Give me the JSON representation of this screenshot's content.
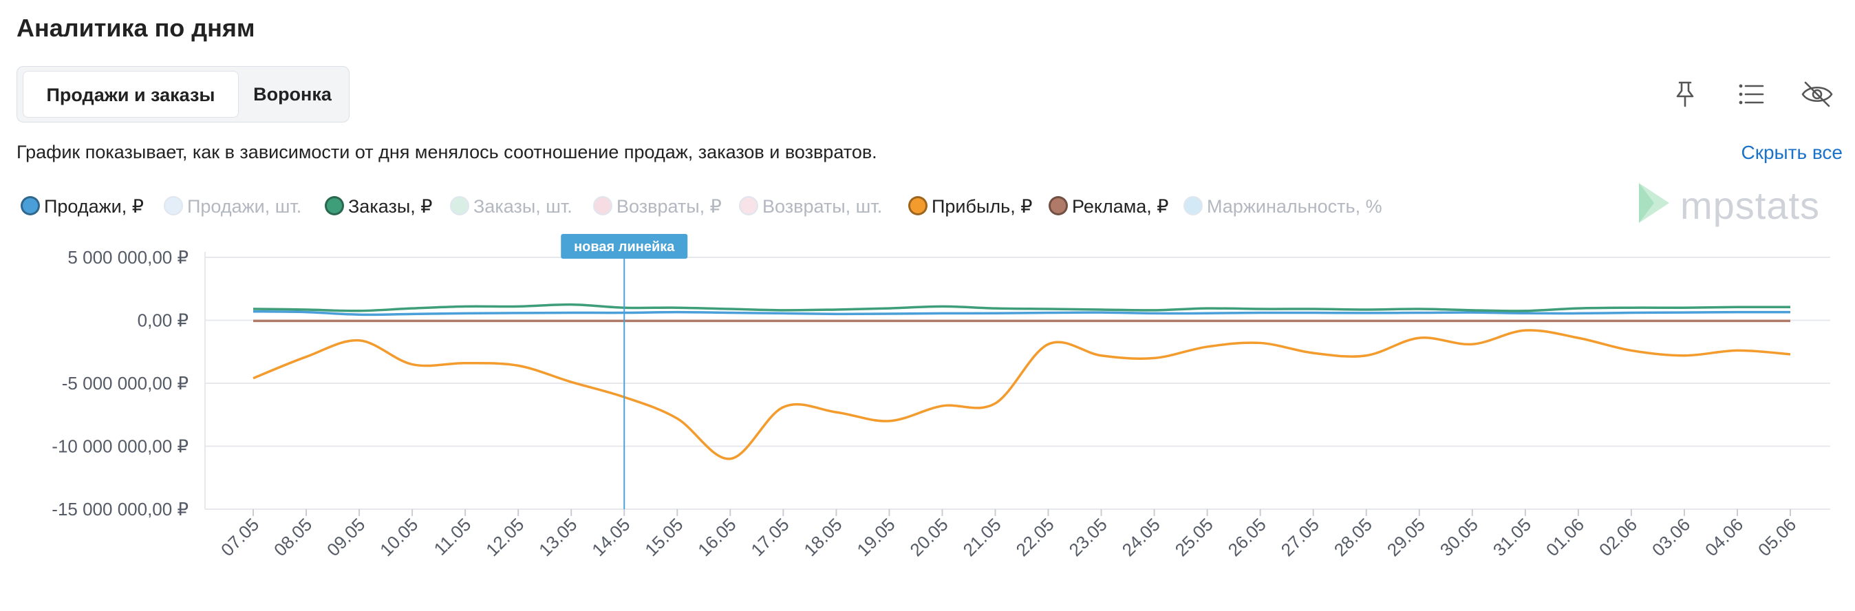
{
  "header": {
    "title": "Аналитика по дням"
  },
  "tabs": [
    {
      "label": "Продажи и заказы",
      "active": true
    },
    {
      "label": "Воронка",
      "active": false
    }
  ],
  "toolbar": {
    "icons": [
      "pin-icon",
      "list-icon",
      "eye-off-icon"
    ]
  },
  "description": "График показывает, как в зависимости от дня менялось соотношение продаж, заказов и возвратов.",
  "hide_all_label": "Скрыть все",
  "logo_text": "mpstats",
  "legend": [
    {
      "label": "Продажи, ₽",
      "color": "#4a9fd8",
      "active": true
    },
    {
      "label": "Продажи, шт.",
      "color": "#e3eef8",
      "active": false
    },
    {
      "label": "Заказы, ₽",
      "color": "#3f9e7a",
      "active": true
    },
    {
      "label": "Заказы, шт.",
      "color": "#d9efe6",
      "active": false
    },
    {
      "label": "Возвраты, ₽",
      "color": "#f5dde3",
      "active": false
    },
    {
      "label": "Возвраты, шт.",
      "color": "#f7e3e8",
      "active": false
    },
    {
      "label": "Прибыль, ₽",
      "color": "#f39b2d",
      "active": true
    },
    {
      "label": "Реклама, ₽",
      "color": "#b07a68",
      "active": true
    },
    {
      "label": "Маржинальность, %",
      "color": "#d4e9f6",
      "active": false
    }
  ],
  "chart_data": {
    "type": "line",
    "categories": [
      "07.05",
      "08.05",
      "09.05",
      "10.05",
      "11.05",
      "12.05",
      "13.05",
      "14.05",
      "15.05",
      "16.05",
      "17.05",
      "18.05",
      "19.05",
      "20.05",
      "21.05",
      "22.05",
      "23.05",
      "24.05",
      "25.05",
      "26.05",
      "27.05",
      "28.05",
      "29.05",
      "30.05",
      "31.05",
      "01.06",
      "02.06",
      "03.06",
      "04.06",
      "05.06"
    ],
    "y_ticks": [
      5000000,
      0,
      -5000000,
      -10000000,
      -15000000
    ],
    "y_tick_labels": [
      "5 000 000,00 ₽",
      "0,00 ₽",
      "-5 000 000,00 ₽",
      "-10 000 000,00 ₽",
      "-15 000 000,00 ₽"
    ],
    "ylim": [
      -15000000,
      5000000
    ],
    "grid": true,
    "series": [
      {
        "name": "Продажи, ₽",
        "color": "#4a9fd8",
        "values": [
          700000,
          650000,
          450000,
          500000,
          550000,
          580000,
          600000,
          600000,
          650000,
          600000,
          550000,
          500000,
          520000,
          550000,
          560000,
          600000,
          620000,
          550000,
          560000,
          600000,
          600000,
          580000,
          600000,
          620000,
          560000,
          550000,
          600000,
          620000,
          650000,
          650000
        ]
      },
      {
        "name": "Заказы, ₽",
        "color": "#3f9e7a",
        "values": [
          900000,
          850000,
          750000,
          950000,
          1100000,
          1100000,
          1250000,
          1000000,
          1000000,
          900000,
          800000,
          850000,
          950000,
          1100000,
          950000,
          900000,
          850000,
          800000,
          950000,
          900000,
          900000,
          850000,
          900000,
          800000,
          750000,
          950000,
          1000000,
          1000000,
          1050000,
          1050000
        ]
      },
      {
        "name": "Прибыль, ₽",
        "color": "#f39b2d",
        "values": [
          -4600000,
          -2900000,
          -1600000,
          -3500000,
          -3400000,
          -3600000,
          -4900000,
          -6100000,
          -7800000,
          -11000000,
          -6900000,
          -7300000,
          -8000000,
          -6800000,
          -6600000,
          -1900000,
          -2800000,
          -3000000,
          -2100000,
          -1800000,
          -2600000,
          -2800000,
          -1400000,
          -1900000,
          -800000,
          -1400000,
          -2400000,
          -2800000,
          -2400000,
          -2700000
        ]
      },
      {
        "name": "Реклама, ₽",
        "color": "#b07a68",
        "values": [
          -50000,
          -50000,
          -50000,
          -50000,
          -50000,
          -50000,
          -50000,
          -50000,
          -50000,
          -50000,
          -50000,
          -50000,
          -50000,
          -50000,
          -50000,
          -50000,
          -50000,
          -50000,
          -50000,
          -50000,
          -50000,
          -50000,
          -50000,
          -50000,
          -50000,
          -50000,
          -50000,
          -50000,
          -50000,
          -50000
        ]
      }
    ],
    "annotation": {
      "label": "новая линейка",
      "category": "14.05",
      "color": "#4aa3d6"
    }
  }
}
